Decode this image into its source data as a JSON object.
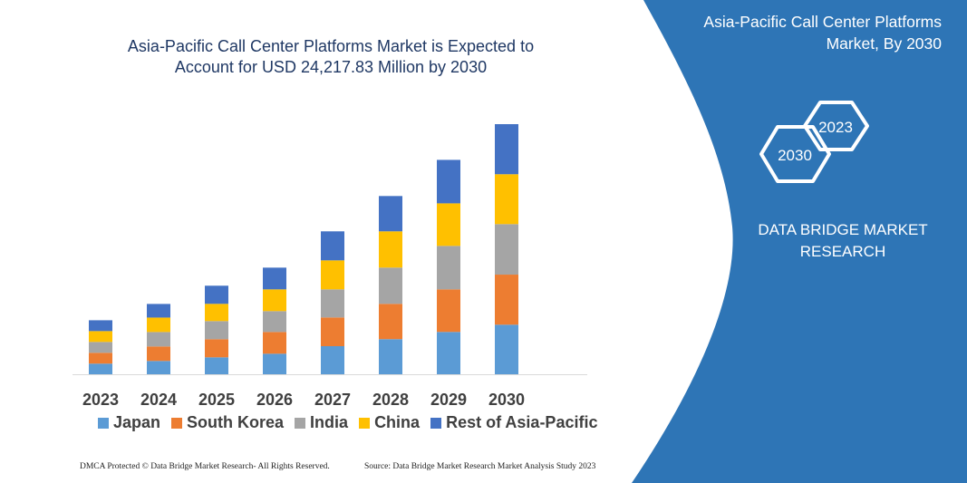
{
  "header": {
    "title_line1": "Asia-Pacific Call Center Platforms Market is Expected to",
    "title_line2": "Account for USD 24,217.83 Million by 2030"
  },
  "side_panel": {
    "title_line1": "Asia-Pacific Call Center Platforms",
    "title_line2": "Market, By 2030",
    "hex_2023": "2023",
    "hex_2030": "2030",
    "brand_line1": "DATA BRIDGE MARKET",
    "brand_line2": "RESEARCH",
    "color": "#2e75b6"
  },
  "footer": {
    "left": "DMCA Protected © Data Bridge Market Research-  All Rights Reserved.",
    "right": "Source: Data Bridge Market Research  Market Analysis Study 2023"
  },
  "chart_data": {
    "type": "bar",
    "stacked": true,
    "title": "Asia-Pacific Call Center Platforms Market is Expected to Account for USD 24,217.83 Million by 2030",
    "categories": [
      "2023",
      "2024",
      "2025",
      "2026",
      "2027",
      "2028",
      "2029",
      "2030"
    ],
    "series": [
      {
        "name": "Japan",
        "color": "#5b9bd5",
        "values": [
          1030,
          1290,
          1640,
          1990,
          2720,
          3400,
          4100,
          4800
        ]
      },
      {
        "name": "South Korea",
        "color": "#ed7d31",
        "values": [
          1050,
          1400,
          1755,
          2105,
          2780,
          3420,
          4120,
          4850
        ]
      },
      {
        "name": "India",
        "color": "#a5a5a5",
        "values": [
          1050,
          1400,
          1755,
          2020,
          2720,
          3510,
          4210,
          4890
        ]
      },
      {
        "name": "China",
        "color": "#ffc000",
        "values": [
          1050,
          1400,
          1670,
          2105,
          2810,
          3510,
          4120,
          4830
        ]
      },
      {
        "name": "Rest of Asia-Pacific",
        "color": "#4472c4",
        "values": [
          1050,
          1320,
          1755,
          2105,
          2810,
          3420,
          4210,
          4850
        ]
      }
    ],
    "y_axis_visible": false,
    "grid": false,
    "legend_position": "bottom"
  }
}
